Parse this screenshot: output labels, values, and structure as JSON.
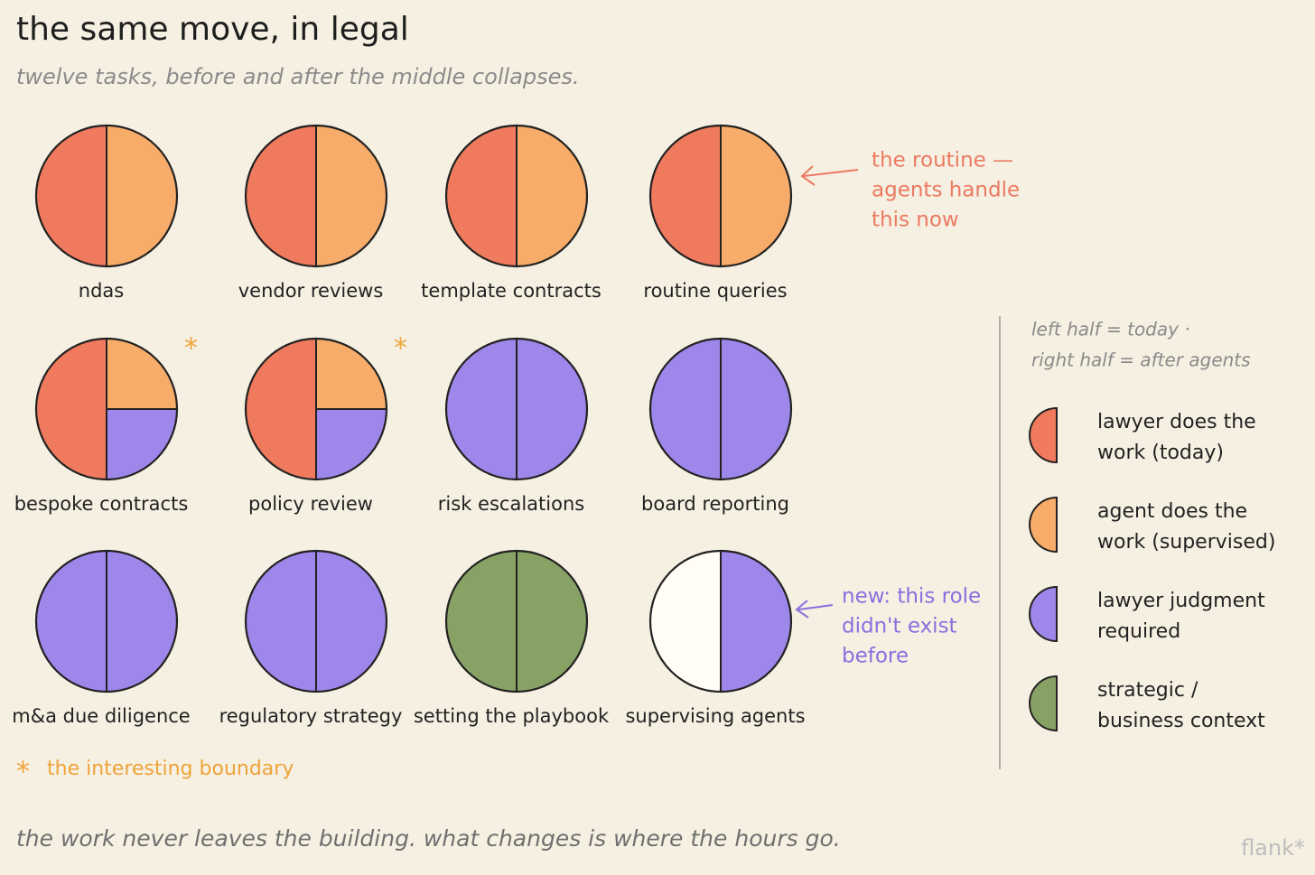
{
  "title": "the same move, in legal",
  "subtitle": "twelve tasks, before and after the middle collapses.",
  "tasks": [
    {
      "label": "ndas",
      "left": "#f07a5e",
      "right": [
        "#f8ac6a"
      ]
    },
    {
      "label": "vendor reviews",
      "left": "#f07a5e",
      "right": [
        "#f8ac6a"
      ]
    },
    {
      "label": "template contracts",
      "left": "#f07a5e",
      "right": [
        "#f8ac6a"
      ]
    },
    {
      "label": "routine queries",
      "left": "#f07a5e",
      "right": [
        "#f8ac6a"
      ]
    },
    {
      "label": "bespoke contracts",
      "left": "#f07a5e",
      "right": [
        "#f8ac6a",
        "#9f86ea"
      ],
      "asterisk": "*"
    },
    {
      "label": "policy review",
      "left": "#f07a5e",
      "right": [
        "#f8ac6a",
        "#9f86ea"
      ],
      "asterisk": "*"
    },
    {
      "label": "risk escalations",
      "left": "#9f86ea",
      "right": [
        "#9f86ea"
      ]
    },
    {
      "label": "board reporting",
      "left": "#9f86ea",
      "right": [
        "#9f86ea"
      ]
    },
    {
      "label": "m&a due diligence",
      "left": "#9f86ea",
      "right": [
        "#9f86ea"
      ]
    },
    {
      "label": "regulatory strategy",
      "left": "#9f86ea",
      "right": [
        "#9f86ea"
      ]
    },
    {
      "label": "setting the playbook",
      "left": "#88a266",
      "right": [
        "#88a266"
      ]
    },
    {
      "label": "supervising agents",
      "left": "#fffdf6",
      "right": [
        "#9f86ea"
      ]
    }
  ],
  "annotations": [
    {
      "lines": [
        "the routine —",
        "agents handle",
        "this now"
      ],
      "color": "#ec7a62"
    },
    {
      "lines": [
        "new: this role",
        "didn't exist",
        "before"
      ],
      "color": "#8a6fe0"
    }
  ],
  "boundary_note": {
    "mark": "*",
    "text": "the interesting boundary",
    "color": "#eea33a"
  },
  "legend": {
    "key": [
      "left half = today ·",
      "right half = after agents"
    ],
    "items": [
      {
        "color": "#f07a5e",
        "lines": [
          "lawyer does the",
          "work (today)"
        ]
      },
      {
        "color": "#f8ac6a",
        "lines": [
          "agent does the",
          "work (supervised)"
        ]
      },
      {
        "color": "#9f86ea",
        "lines": [
          "lawyer judgment",
          "required"
        ]
      },
      {
        "color": "#88a266",
        "lines": [
          "strategic /",
          "business context"
        ]
      }
    ]
  },
  "footer": "the work never leaves the building. what changes is where the hours go.",
  "brand": "flank*"
}
